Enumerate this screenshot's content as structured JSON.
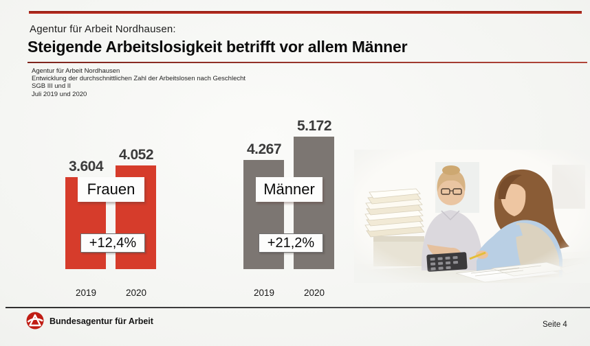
{
  "slide": {
    "kicker": "Agentur für Arbeit Nordhausen:",
    "title": "Steigende Arbeitslosigkeit betrifft vor allem Männer",
    "source_lines": [
      "Agentur für Arbeit Nordhausen",
      "Entwicklung der durchschnittlichen Zahl der Arbeitslosen nach Geschlecht",
      "SGB III und II",
      "Juli 2019 und 2020"
    ]
  },
  "chart_data": {
    "type": "bar",
    "categories": [
      "2019",
      "2020"
    ],
    "series": [
      {
        "name": "Frauen",
        "color": "#d63c2b",
        "values": [
          3604,
          4052
        ],
        "value_labels": [
          "3.604",
          "4.052"
        ],
        "change_label": "+12,4%"
      },
      {
        "name": "Männer",
        "color": "#7c7672",
        "values": [
          4267,
          5172
        ],
        "value_labels": [
          "4.267",
          "5.172"
        ],
        "change_label": "+21,2%"
      }
    ],
    "title": "",
    "xlabel": "",
    "ylabel": "",
    "ylim": [
      0,
      5500
    ],
    "grid": false,
    "legend": "inline-boxes-on-bars",
    "value_label_position": "above-bars"
  },
  "photo": {
    "description": "Zwei Frauen arbeiten am Schreibtisch mit Unterlagen und Taschenrechner"
  },
  "footer": {
    "brand": "Bundesagentur für Arbeit",
    "page": "Seite 4"
  }
}
